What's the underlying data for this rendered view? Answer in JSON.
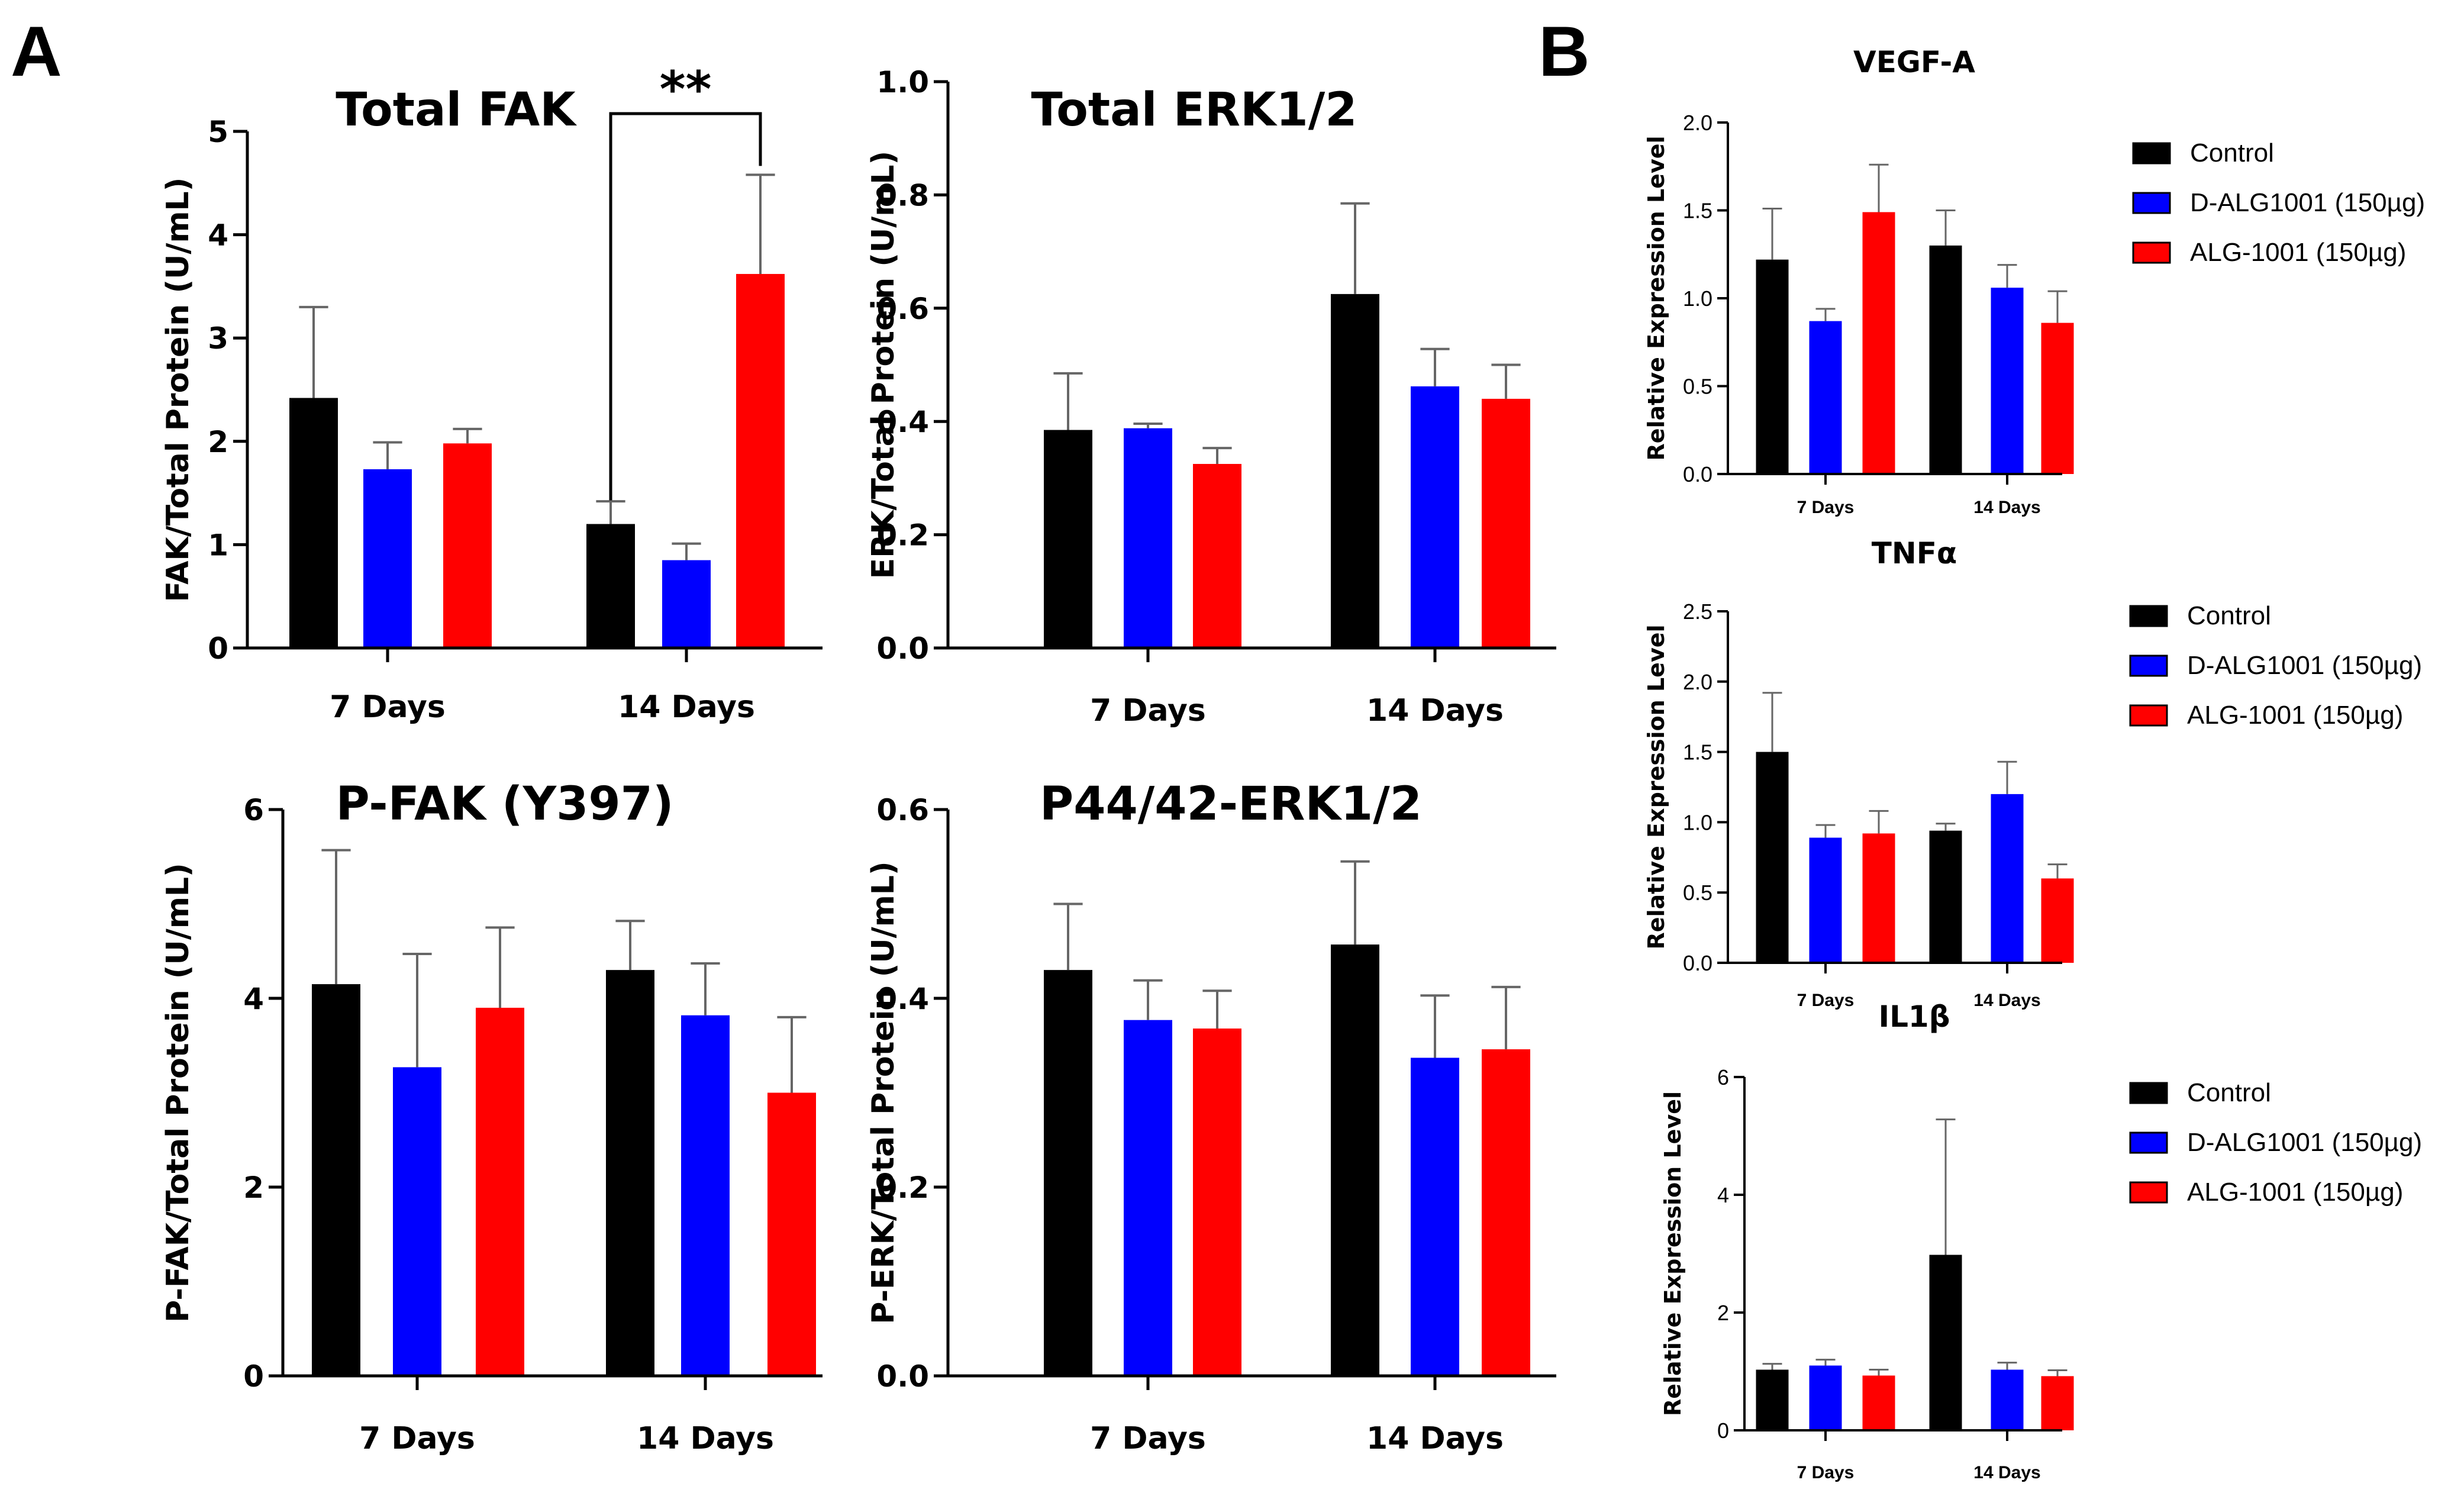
{
  "figure": {
    "panel_a_letter": "A",
    "panel_b_letter": "B",
    "group_labels": [
      "7 Days",
      "14 Days"
    ],
    "colors": {
      "control": "#000000",
      "d_alg": "#0000ff",
      "alg": "#ff0000"
    }
  },
  "chart_data": [
    {
      "id": "total-fak",
      "panel": "A",
      "type": "bar",
      "title": "Total FAK",
      "ylabel": "FAK/Total Protein (U/mL)",
      "categories": [
        "7 Days",
        "14 Days"
      ],
      "ylim": [
        0,
        5
      ],
      "yticks": [
        0,
        1,
        2,
        3,
        4,
        5
      ],
      "ytick_labels": [
        "0",
        "1",
        "2",
        "3",
        "4",
        "5"
      ],
      "series": [
        {
          "name": "Control",
          "color": "#000000",
          "values": [
            2.42,
            1.2
          ],
          "errors": [
            0.88,
            0.22
          ]
        },
        {
          "name": "D-ALG1001 (150µg)",
          "color": "#0000ff",
          "values": [
            1.73,
            0.85
          ],
          "errors": [
            0.26,
            0.16
          ]
        },
        {
          "name": "ALG-1001 (150µg)",
          "color": "#ff0000",
          "values": [
            1.98,
            3.62
          ],
          "errors": [
            0.14,
            0.96
          ]
        }
      ],
      "annotation": {
        "text": "**",
        "from_category": 1,
        "from_series": 0,
        "to_category": 1,
        "to_series": 2
      }
    },
    {
      "id": "total-erk",
      "panel": "A",
      "type": "bar",
      "title": "Total ERK1/2",
      "ylabel": "ERK/Total Protein (U/mL)",
      "categories": [
        "7 Days",
        "14 Days"
      ],
      "ylim": [
        0,
        1.0
      ],
      "yticks": [
        0,
        0.2,
        0.4,
        0.6,
        0.8,
        1.0
      ],
      "ytick_labels": [
        "0.0",
        "0.2",
        "0.4",
        "0.6",
        "0.8",
        "1.0"
      ],
      "series": [
        {
          "name": "Control",
          "color": "#000000",
          "values": [
            0.385,
            0.625
          ],
          "errors": [
            0.1,
            0.16
          ]
        },
        {
          "name": "D-ALG1001 (150µg)",
          "color": "#0000ff",
          "values": [
            0.388,
            0.462
          ],
          "errors": [
            0.008,
            0.066
          ]
        },
        {
          "name": "ALG-1001 (150µg)",
          "color": "#ff0000",
          "values": [
            0.325,
            0.44
          ],
          "errors": [
            0.028,
            0.06
          ]
        }
      ]
    },
    {
      "id": "p-fak",
      "panel": "A",
      "type": "bar",
      "title": "P-FAK (Y397)",
      "ylabel": "P-FAK/Total Protein (U/mL)",
      "categories": [
        "7 Days",
        "14 Days"
      ],
      "ylim": [
        0,
        6
      ],
      "yticks": [
        0,
        2,
        4,
        6
      ],
      "ytick_labels": [
        "0",
        "2",
        "4",
        "6"
      ],
      "series": [
        {
          "name": "Control",
          "color": "#000000",
          "values": [
            4.15,
            4.3
          ],
          "errors": [
            1.42,
            0.52
          ]
        },
        {
          "name": "D-ALG1001 (150µg)",
          "color": "#0000ff",
          "values": [
            3.27,
            3.82
          ],
          "errors": [
            1.2,
            0.55
          ]
        },
        {
          "name": "ALG-1001 (150µg)",
          "color": "#ff0000",
          "values": [
            3.9,
            3.0
          ],
          "errors": [
            0.85,
            0.8
          ]
        }
      ]
    },
    {
      "id": "p-erk",
      "panel": "A",
      "type": "bar",
      "title": "P44/42-ERK1/2",
      "ylabel": "P-ERK/Total Protein (U/mL)",
      "categories": [
        "7 Days",
        "14 Days"
      ],
      "ylim": [
        0,
        0.6
      ],
      "yticks": [
        0,
        0.2,
        0.4,
        0.6
      ],
      "ytick_labels": [
        "0.0",
        "0.2",
        "0.4",
        "0.6"
      ],
      "series": [
        {
          "name": "Control",
          "color": "#000000",
          "values": [
            0.43,
            0.457
          ],
          "errors": [
            0.07,
            0.088
          ]
        },
        {
          "name": "D-ALG1001 (150µg)",
          "color": "#0000ff",
          "values": [
            0.377,
            0.337
          ],
          "errors": [
            0.042,
            0.066
          ]
        },
        {
          "name": "ALG-1001 (150µg)",
          "color": "#ff0000",
          "values": [
            0.368,
            0.346
          ],
          "errors": [
            0.04,
            0.066
          ]
        }
      ]
    },
    {
      "id": "vegf-a",
      "panel": "B",
      "type": "bar",
      "title": "VEGF-A",
      "ylabel": "Relative  Expression Level",
      "categories": [
        "7 Days",
        "14 Days"
      ],
      "ylim": [
        0,
        2.0
      ],
      "yticks": [
        0,
        0.5,
        1.0,
        1.5,
        2.0
      ],
      "ytick_labels": [
        "0.0",
        "0.5",
        "1.0",
        "1.5",
        "2.0"
      ],
      "legend": [
        "Control",
        "D-ALG1001 (150µg)",
        "ALG-1001 (150µg)"
      ],
      "series": [
        {
          "name": "Control",
          "color": "#000000",
          "values": [
            1.22,
            1.3
          ],
          "errors": [
            0.29,
            0.2
          ]
        },
        {
          "name": "D-ALG1001 (150µg)",
          "color": "#0000ff",
          "values": [
            0.87,
            1.06
          ],
          "errors": [
            0.07,
            0.13
          ]
        },
        {
          "name": "ALG-1001 (150µg)",
          "color": "#ff0000",
          "values": [
            1.49,
            0.86
          ],
          "errors": [
            0.27,
            0.18
          ]
        }
      ]
    },
    {
      "id": "tnf-a",
      "panel": "B",
      "type": "bar",
      "title": "TNFα",
      "ylabel": "Relative  Expression Level",
      "categories": [
        "7 Days",
        "14 Days"
      ],
      "ylim": [
        0,
        2.5
      ],
      "yticks": [
        0,
        0.5,
        1.0,
        1.5,
        2.0,
        2.5
      ],
      "ytick_labels": [
        "0.0",
        "0.5",
        "1.0",
        "1.5",
        "2.0",
        "2.5"
      ],
      "legend": [
        "Control",
        "D-ALG1001 (150µg)",
        "ALG-1001 (150µg)"
      ],
      "series": [
        {
          "name": "Control",
          "color": "#000000",
          "values": [
            1.5,
            0.94
          ],
          "errors": [
            0.42,
            0.05
          ]
        },
        {
          "name": "D-ALG1001 (150µg)",
          "color": "#0000ff",
          "values": [
            0.89,
            1.2
          ],
          "errors": [
            0.09,
            0.23
          ]
        },
        {
          "name": "ALG-1001 (150µg)",
          "color": "#ff0000",
          "values": [
            0.92,
            0.6
          ],
          "errors": [
            0.16,
            0.1
          ]
        }
      ]
    },
    {
      "id": "il1b",
      "panel": "B",
      "type": "bar",
      "title": "IL1β",
      "ylabel": "Relative  Expression Level",
      "categories": [
        "7 Days",
        "14 Days"
      ],
      "ylim": [
        0,
        6
      ],
      "yticks": [
        0,
        2,
        4,
        6
      ],
      "ytick_labels": [
        "0",
        "2",
        "4",
        "6"
      ],
      "legend": [
        "Control",
        "D-ALG1001 (150µg)",
        "ALG-1001 (150µg)"
      ],
      "series": [
        {
          "name": "Control",
          "color": "#000000",
          "values": [
            1.03,
            2.98
          ],
          "errors": [
            0.1,
            2.3
          ]
        },
        {
          "name": "D-ALG1001 (150µg)",
          "color": "#0000ff",
          "values": [
            1.1,
            1.03
          ],
          "errors": [
            0.1,
            0.12
          ]
        },
        {
          "name": "ALG-1001 (150µg)",
          "color": "#ff0000",
          "values": [
            0.93,
            0.92
          ],
          "errors": [
            0.1,
            0.1
          ]
        }
      ]
    }
  ]
}
